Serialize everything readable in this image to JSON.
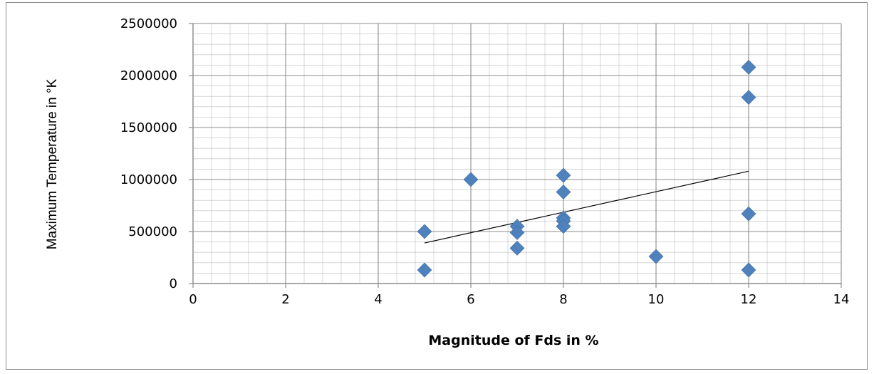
{
  "chart_data": {
    "type": "scatter",
    "title": "",
    "xlabel": "Magnitude of Fds in %",
    "ylabel": "Maximum Temperature in °K",
    "xlim": [
      0,
      14
    ],
    "ylim": [
      0,
      2500000
    ],
    "x_major_step": 2,
    "y_major_step": 500000,
    "x_ticks": [
      "0",
      "2",
      "4",
      "6",
      "8",
      "10",
      "12",
      "14"
    ],
    "y_ticks": [
      "0",
      "500000",
      "1000000",
      "1500000",
      "2000000",
      "2500000"
    ],
    "grid": "on (major and minor)",
    "legend": "none",
    "marker": "diamond",
    "colors": {
      "marker": "#4f81bd",
      "trendline": "#000000",
      "gridline": "#8c8c8c"
    },
    "series": [
      {
        "points": [
          {
            "x": 5,
            "y": 500000
          },
          {
            "x": 5,
            "y": 130000
          },
          {
            "x": 6,
            "y": 1000000
          },
          {
            "x": 7,
            "y": 550000
          },
          {
            "x": 7,
            "y": 490000
          },
          {
            "x": 7,
            "y": 340000
          },
          {
            "x": 8,
            "y": 1040000
          },
          {
            "x": 8,
            "y": 880000
          },
          {
            "x": 8,
            "y": 630000
          },
          {
            "x": 8,
            "y": 600000
          },
          {
            "x": 8,
            "y": 550000
          },
          {
            "x": 10,
            "y": 260000
          },
          {
            "x": 12,
            "y": 2080000
          },
          {
            "x": 12,
            "y": 1790000
          },
          {
            "x": 12,
            "y": 670000
          },
          {
            "x": 12,
            "y": 130000
          }
        ]
      }
    ],
    "trendline": {
      "type": "linear",
      "x_start": 5,
      "y_start": 390000,
      "x_end": 12,
      "y_end": 1080000
    }
  }
}
